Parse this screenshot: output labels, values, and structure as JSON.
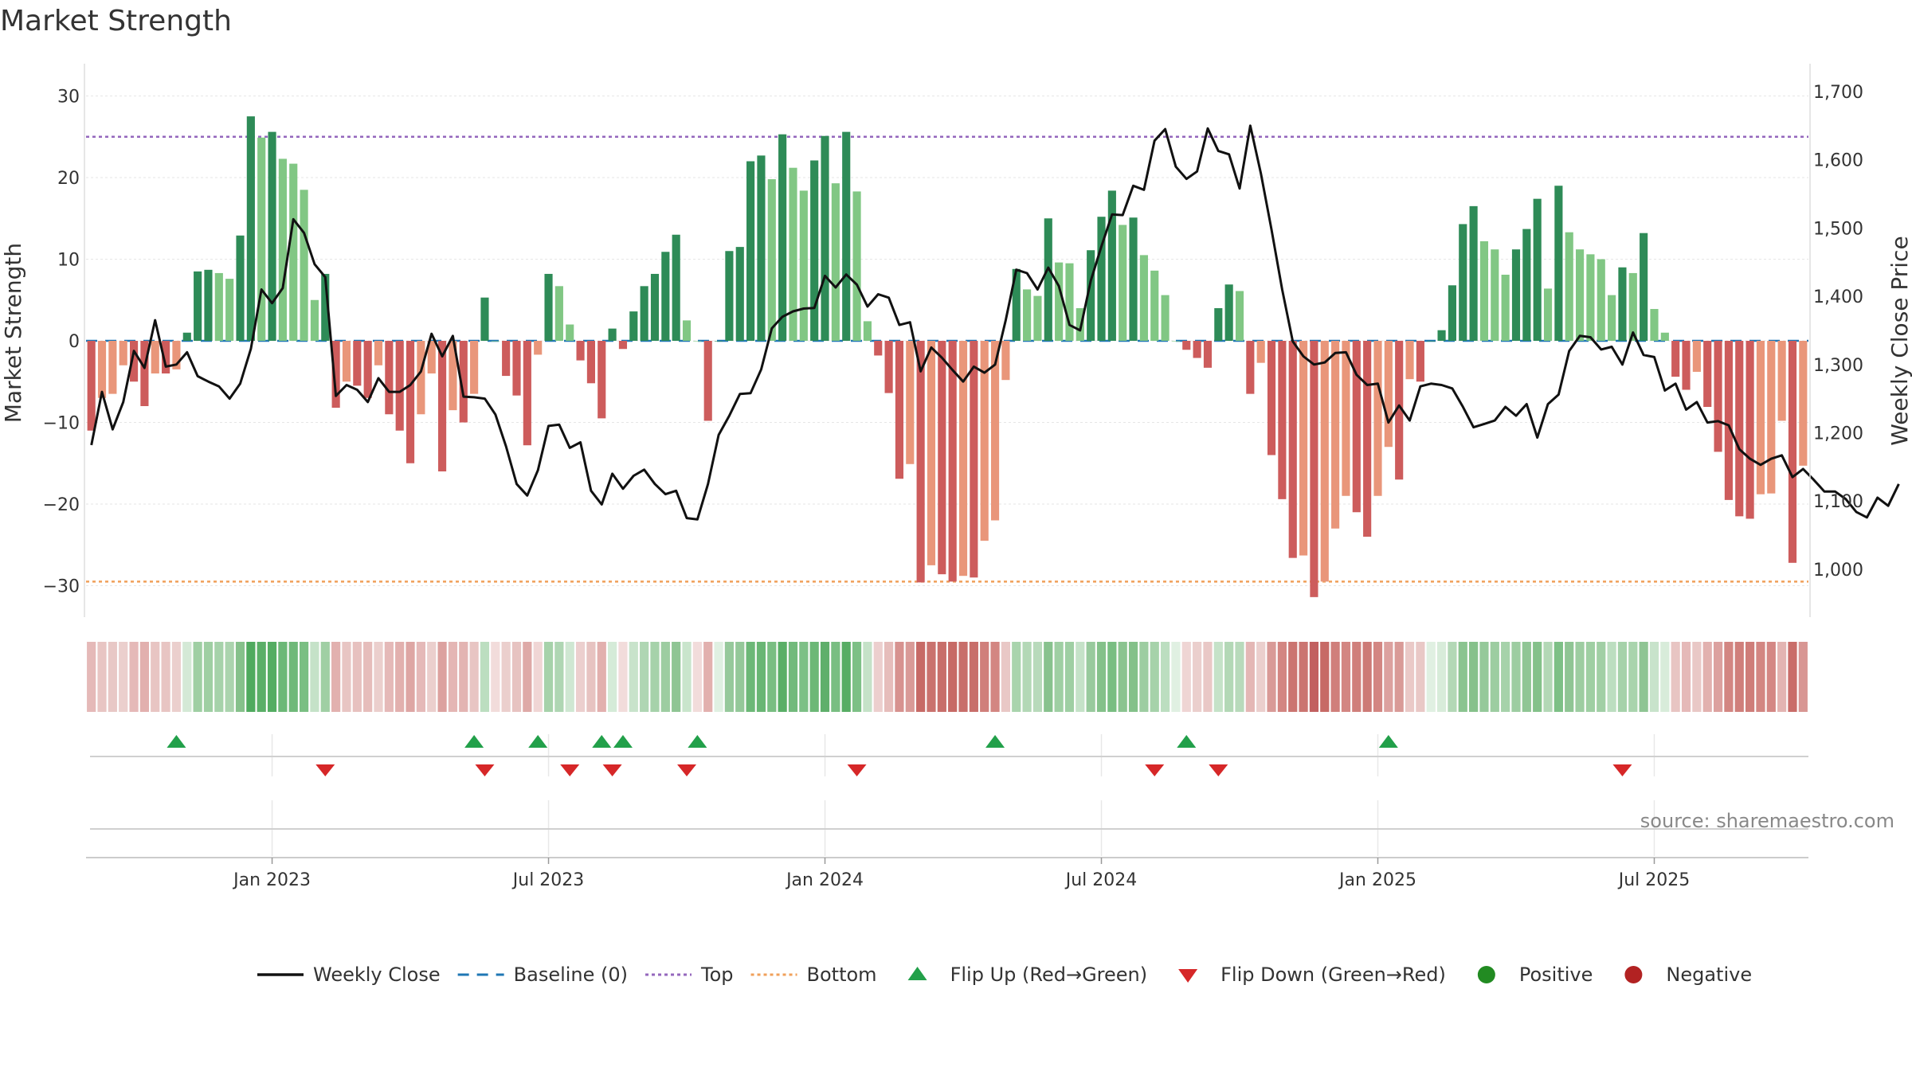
{
  "chart_data": {
    "type": "bar",
    "title": "Market Strength",
    "ylabel_left": "Market Strength",
    "ylabel_right": "Weekly Close Price",
    "ylim_left": [
      -34,
      34
    ],
    "ylim_right": [
      950,
      1710
    ],
    "left_ticks": [
      30,
      20,
      10,
      0,
      -10,
      -20,
      -30
    ],
    "left_tick_labels": [
      "30",
      "20",
      "10",
      "0",
      "−10",
      "−20",
      "−30"
    ],
    "right_ticks": [
      1700,
      1600,
      1500,
      1400,
      1300,
      1200,
      1100,
      1000
    ],
    "right_tick_labels": [
      "1,700",
      "1,600",
      "1,500",
      "1,400",
      "1,300",
      "1,200",
      "1,100",
      "1,000"
    ],
    "x_ticks": [
      {
        "week": 17,
        "label": "Jan 2023"
      },
      {
        "week": 43,
        "label": "Jul 2023"
      },
      {
        "week": 69,
        "label": "Jan 2024"
      },
      {
        "week": 95,
        "label": "Jul 2024"
      },
      {
        "week": 121,
        "label": "Jan 2025"
      },
      {
        "week": 147,
        "label": "Jul 2025"
      }
    ],
    "top_level": 25,
    "bottom_level": -29.5,
    "strength": [
      -11,
      -7,
      -6.5,
      -3,
      -5,
      -8,
      -4,
      -4,
      -3.5,
      1,
      8.5,
      8.7,
      8.3,
      7.6,
      12.9,
      27.5,
      24.9,
      25.6,
      22.3,
      21.7,
      18.5,
      5,
      8.2,
      -8.2,
      -5,
      -5.5,
      -7,
      -3,
      -9,
      -11,
      -15,
      -9,
      -4,
      -16,
      -8.5,
      -10,
      -6.5,
      5.3,
      0,
      -4.3,
      -6.7,
      -12.8,
      -1.7,
      8.2,
      6.7,
      2,
      -2.4,
      -5.2,
      -9.5,
      1.5,
      -1,
      3.6,
      6.7,
      8.2,
      10.9,
      13,
      2.5,
      0,
      -9.8,
      0,
      11,
      11.5,
      22,
      22.7,
      19.8,
      25.3,
      21.2,
      18.4,
      22.1,
      25.1,
      19.3,
      25.6,
      18.3,
      2.4,
      -1.8,
      -6.4,
      -16.9,
      -15.1,
      -29.6,
      -27.5,
      -28.6,
      -29.5,
      -28.8,
      -29,
      -24.5,
      -22,
      -4.8,
      8.8,
      6.3,
      5.5,
      15,
      9.6,
      9.5,
      4,
      11.1,
      15.2,
      18.4,
      14.2,
      15.1,
      10.5,
      8.6,
      5.6,
      0,
      -1.1,
      -2.1,
      -3.3,
      4,
      6.9,
      6.1,
      -6.5,
      -2.7,
      -14,
      -19.4,
      -26.6,
      -26.3,
      -31.4,
      -29.5,
      -23,
      -19,
      -21,
      -24,
      -19,
      -13,
      -17,
      -4.7,
      -5,
      0,
      1.3,
      6.8,
      14.3,
      16.5,
      12.2,
      11.2,
      8.1,
      11.2,
      13.7,
      17.4,
      6.4,
      19,
      13.3,
      11.2,
      10.6,
      10,
      5.6,
      9,
      8.3,
      13.2,
      3.9,
      1,
      -4.4,
      -6,
      -3.8,
      -8.1,
      -13.6,
      -19.5,
      -21.5,
      -21.8,
      -18.8,
      -18.7,
      -9.8,
      -27.2,
      -15.3
    ],
    "price": [
      1182,
      1260,
      1205,
      1245,
      1320,
      1295,
      1365,
      1297,
      1300,
      1318,
      1283,
      1275,
      1268,
      1250,
      1272,
      1323,
      1410,
      1390,
      1412,
      1513,
      1493,
      1447,
      1428,
      1254,
      1270,
      1263,
      1245,
      1280,
      1260,
      1260,
      1270,
      1290,
      1345,
      1312,
      1342,
      1253,
      1252,
      1250,
      1227,
      1180,
      1125,
      1108,
      1145,
      1210,
      1212,
      1178,
      1186,
      1115,
      1095,
      1140,
      1118,
      1137,
      1146,
      1125,
      1110,
      1115,
      1075,
      1073,
      1125,
      1197,
      1225,
      1257,
      1258,
      1293,
      1353,
      1370,
      1378,
      1382,
      1383,
      1430,
      1413,
      1432,
      1417,
      1385,
      1403,
      1398,
      1358,
      1362,
      1290,
      1325,
      1310,
      1292,
      1275,
      1297,
      1288,
      1300,
      1365,
      1439,
      1434,
      1410,
      1442,
      1415,
      1358,
      1350,
      1423,
      1473,
      1520,
      1519,
      1562,
      1556,
      1628,
      1645,
      1590,
      1572,
      1583,
      1646,
      1613,
      1608,
      1558,
      1650,
      1580,
      1498,
      1410,
      1334,
      1312,
      1300,
      1303,
      1317,
      1318,
      1285,
      1270,
      1272,
      1215,
      1240,
      1218,
      1268,
      1272,
      1270,
      1265,
      1238,
      1208,
      1213,
      1218,
      1238,
      1225,
      1242,
      1193,
      1242,
      1256,
      1320,
      1342,
      1340,
      1322,
      1326,
      1300,
      1347,
      1314,
      1311,
      1262,
      1272,
      1234,
      1245,
      1215,
      1217,
      1211,
      1176,
      1162,
      1153,
      1162,
      1167,
      1135,
      1147,
      1131,
      1114,
      1114,
      1103,
      1084,
      1076,
      1105,
      1093,
      1125
    ],
    "strip_colors": [
      "#e5b9b8",
      "#e8c5c3",
      "#e8c8c6",
      "#ebcfcd",
      "#e5b9b8",
      "#e2b0ae",
      "#e8c5c3",
      "#e8c5c3",
      "#ebcfcd",
      "#d4e9d6",
      "#9fcfa3",
      "#9fcfa3",
      "#a6d2aa",
      "#abd4ae",
      "#86c18b",
      "#4faa5e",
      "#5aaf67",
      "#54ad62",
      "#6cb877",
      "#6fb979",
      "#7abf83",
      "#c5e2c8",
      "#a0cfa4",
      "#e2b1af",
      "#e8c5c3",
      "#e7c1bf",
      "#e6bdbb",
      "#ebcfcd",
      "#e5b9b8",
      "#e2b0ae",
      "#dea6a4",
      "#e5b9b8",
      "#ebcfcd",
      "#dca19f",
      "#e4b6b4",
      "#e3b4b2",
      "#e8c5c3",
      "#bcdec0",
      "#f2dcdb",
      "#ebcfcd",
      "#e7c3c1",
      "#dea9a7",
      "#f0d6d5",
      "#a6d2aa",
      "#afd6b3",
      "#cfe7d2",
      "#eccfce",
      "#e7c3c1",
      "#e2b0ae",
      "#d5ebd8",
      "#f2dcdb",
      "#c8e3cb",
      "#afd6b3",
      "#a6d2aa",
      "#9dcda1",
      "#8fc594",
      "#c9e5cc",
      "#f2dcdb",
      "#e2b0ae",
      "#e0f0e2",
      "#96c99b",
      "#94c899",
      "#6cb877",
      "#69b674",
      "#79be82",
      "#5aaf67",
      "#72ba7c",
      "#7dc086",
      "#6cb877",
      "#5faf6b",
      "#79be82",
      "#57ad64",
      "#7dc086",
      "#c5e2c8",
      "#eccfce",
      "#e6bdbb",
      "#d7928f",
      "#d99a97",
      "#c76a66",
      "#ca726e",
      "#c86e6a",
      "#c76a66",
      "#c86e6a",
      "#c86e6a",
      "#d07f7b",
      "#d38682",
      "#e9c8c6",
      "#a9d4ad",
      "#b3d8b6",
      "#b8dabb",
      "#88c28e",
      "#9fcfa3",
      "#9fcfa3",
      "#c5e2c8",
      "#98ca9d",
      "#84c18a",
      "#79be82",
      "#8bc490",
      "#84c18a",
      "#9dcda1",
      "#a6d2aa",
      "#bcdec0",
      "#e0f0e2",
      "#efd5d4",
      "#ebcfcd",
      "#e9c8c6",
      "#c5e2c8",
      "#b3d8b6",
      "#b8dabb",
      "#e4b7b5",
      "#ebcfcd",
      "#d99a97",
      "#d38682",
      "#cb7571",
      "#cb7571",
      "#c26060",
      "#c76a66",
      "#d07f7b",
      "#d38682",
      "#d07f7b",
      "#cd7a76",
      "#d38682",
      "#dca19f",
      "#d99a97",
      "#eac9c7",
      "#e9c8c6",
      "#e0f0e2",
      "#d8ecda",
      "#b3d8b6",
      "#8bc490",
      "#86c18b",
      "#95c99a",
      "#9dcda1",
      "#a6d2aa",
      "#9dcda1",
      "#90c695",
      "#84c18a",
      "#b3d8b6",
      "#7dc086",
      "#8fc594",
      "#9dcda1",
      "#9fcfa3",
      "#a1cfa5",
      "#bcdec0",
      "#a6d2aa",
      "#a9d4ad",
      "#8fc594",
      "#c8e3cb",
      "#d8ecda",
      "#e8c5c3",
      "#e5b9b8",
      "#e9c8c6",
      "#e2b1af",
      "#dca19f",
      "#d38682",
      "#d07f7b",
      "#cf7d79",
      "#d38682",
      "#d48784",
      "#e3b4b2",
      "#c96d69",
      "#d89693"
    ],
    "flip_up_weeks": [
      8,
      36,
      42,
      48,
      50,
      57,
      85,
      103,
      122
    ],
    "flip_down_weeks": [
      22,
      37,
      45,
      49,
      56,
      72,
      100,
      106,
      144
    ],
    "markers_positive_weeks": [],
    "markers_negative_weeks": [],
    "legend": [
      {
        "label": "Weekly Close",
        "kind": "line",
        "color": "#111111"
      },
      {
        "label": "Baseline (0)",
        "kind": "dash",
        "color": "#1f77b4"
      },
      {
        "label": "Top",
        "kind": "dot",
        "color": "#9467bd"
      },
      {
        "label": "Bottom",
        "kind": "dot",
        "color": "#f0a05a"
      },
      {
        "label": "Flip Up (Red→Green)",
        "kind": "tri-up",
        "color": "#22a04a"
      },
      {
        "label": "Flip Down (Green→Red)",
        "kind": "tri-down",
        "color": "#d62728"
      },
      {
        "label": "Positive",
        "kind": "circle",
        "color": "#228b22"
      },
      {
        "label": "Negative",
        "kind": "circle",
        "color": "#b22222"
      }
    ],
    "source": "source: sharemaestro.com",
    "colors": {
      "strong_pos": "#2e8b57",
      "weak_pos": "#81c784",
      "strong_neg": "#cd5c5c",
      "weak_neg": "#e9967a",
      "price_line": "#111111",
      "baseline": "#1f77b4",
      "top": "#9467bd",
      "bottom": "#f0a05a"
    }
  }
}
